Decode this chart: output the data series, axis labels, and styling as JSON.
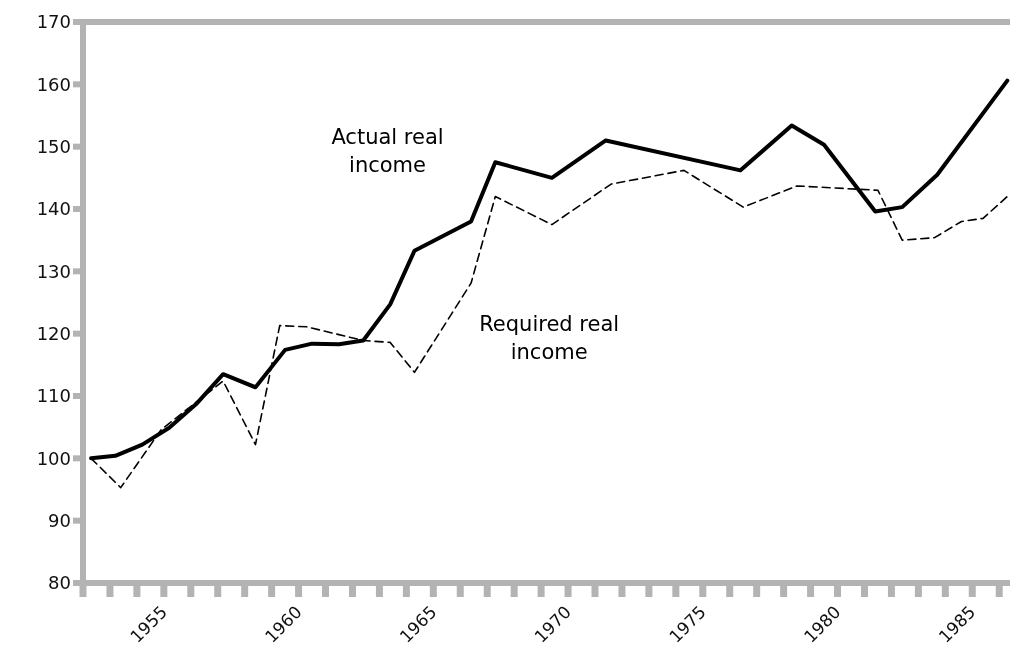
{
  "chart_data": {
    "type": "line",
    "xlim": [
      1952,
      1986.4
    ],
    "ylim": [
      80,
      170
    ],
    "xticks": [
      {
        "value": 1952,
        "label": null
      },
      {
        "value": 1953,
        "label": null
      },
      {
        "value": 1954,
        "label": null
      },
      {
        "value": 1955,
        "label": "1955"
      },
      {
        "value": 1956,
        "label": null
      },
      {
        "value": 1957,
        "label": null
      },
      {
        "value": 1958,
        "label": null
      },
      {
        "value": 1959,
        "label": null
      },
      {
        "value": 1960,
        "label": "1960"
      },
      {
        "value": 1961,
        "label": null
      },
      {
        "value": 1962,
        "label": null
      },
      {
        "value": 1963,
        "label": null
      },
      {
        "value": 1964,
        "label": null
      },
      {
        "value": 1965,
        "label": "1965"
      },
      {
        "value": 1966,
        "label": null
      },
      {
        "value": 1967,
        "label": null
      },
      {
        "value": 1968,
        "label": null
      },
      {
        "value": 1969,
        "label": null
      },
      {
        "value": 1970,
        "label": "1970"
      },
      {
        "value": 1971,
        "label": null
      },
      {
        "value": 1972,
        "label": null
      },
      {
        "value": 1973,
        "label": null
      },
      {
        "value": 1974,
        "label": null
      },
      {
        "value": 1975,
        "label": "1975"
      },
      {
        "value": 1976,
        "label": null
      },
      {
        "value": 1977,
        "label": null
      },
      {
        "value": 1978,
        "label": null
      },
      {
        "value": 1979,
        "label": null
      },
      {
        "value": 1980,
        "label": "1980"
      },
      {
        "value": 1981,
        "label": null
      },
      {
        "value": 1982,
        "label": null
      },
      {
        "value": 1983,
        "label": null
      },
      {
        "value": 1984,
        "label": null
      },
      {
        "value": 1985,
        "label": "1985"
      },
      {
        "value": 1986,
        "label": null
      }
    ],
    "yticks": [
      80,
      90,
      100,
      110,
      120,
      130,
      140,
      150,
      160,
      170
    ],
    "marker": "none",
    "series": [
      {
        "name": "Actual real income",
        "color": "#000000",
        "line_style": "solid",
        "x": [
          1952.3,
          1953.2,
          1954.2,
          1955.2,
          1956.2,
          1957.2,
          1958.4,
          1959.5,
          1960.5,
          1961.5,
          1962.4,
          1963.4,
          1964.3,
          1966.4,
          1967.3,
          1969.4,
          1971.4,
          1976.4,
          1978.3,
          1979.5,
          1981.4,
          1982.4,
          1983.7,
          1986.3
        ],
        "values": [
          100,
          100.4,
          102.2,
          104.9,
          108.7,
          113.5,
          111.4,
          117.4,
          118.4,
          118.3,
          118.9,
          124.7,
          133.3,
          138,
          147.5,
          145,
          151,
          146.2,
          153.4,
          150.3,
          139.6,
          140.3,
          145.5,
          160.6
        ]
      },
      {
        "name": "Required real income",
        "color": "#000000",
        "line_style": "dashed",
        "x": [
          1952.3,
          1953.4,
          1954.9,
          1957.2,
          1958.4,
          1959.3,
          1960.3,
          1962.4,
          1963.4,
          1964.3,
          1966.4,
          1967.3,
          1969.4,
          1971.6,
          1974.3,
          1976.5,
          1978.5,
          1981.5,
          1982.4,
          1983.6,
          1984.6,
          1985.4,
          1986.3
        ],
        "values": [
          100,
          95.3,
          104.6,
          112.4,
          102.2,
          121.3,
          121.1,
          118.9,
          118.6,
          113.8,
          128.1,
          142,
          137.5,
          144,
          146.2,
          140.3,
          143.7,
          143,
          135,
          135.4,
          138,
          138.5,
          142
        ]
      }
    ]
  }
}
